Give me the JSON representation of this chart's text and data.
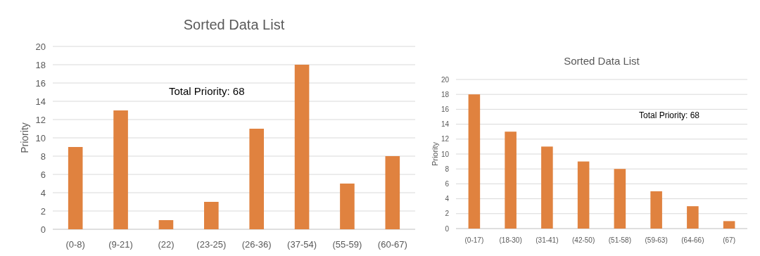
{
  "chart_data": [
    {
      "type": "bar",
      "title": "Sorted Data List",
      "ylabel": "Priority",
      "categories": [
        "(0-8)",
        "(9-21)",
        "(22)",
        "(23-25)",
        "(26-36)",
        "(37-54)",
        "(55-59)",
        "(60-67)"
      ],
      "values": [
        9,
        13,
        1,
        3,
        11,
        18,
        5,
        8
      ],
      "color": "#e0823f",
      "ylim": [
        0,
        20
      ],
      "yticks": [
        0,
        2,
        4,
        6,
        8,
        10,
        12,
        14,
        16,
        18,
        20
      ],
      "grid": "y",
      "annotations": [
        "Total Priority: 68"
      ]
    },
    {
      "type": "bar",
      "title": "Sorted Data List",
      "ylabel": "Priority",
      "categories": [
        "(0-17)",
        "(18-30)",
        "(31-41)",
        "(42-50)",
        "(51-58)",
        "(59-63)",
        "(64-66)",
        "(67)"
      ],
      "values": [
        18,
        13,
        11,
        9,
        8,
        5,
        3,
        1
      ],
      "color": "#e0823f",
      "ylim": [
        0,
        20
      ],
      "yticks": [
        0,
        2,
        4,
        6,
        8,
        10,
        12,
        14,
        16,
        18,
        20
      ],
      "grid": "y",
      "annotations": [
        "Total Priority: 68"
      ]
    }
  ]
}
